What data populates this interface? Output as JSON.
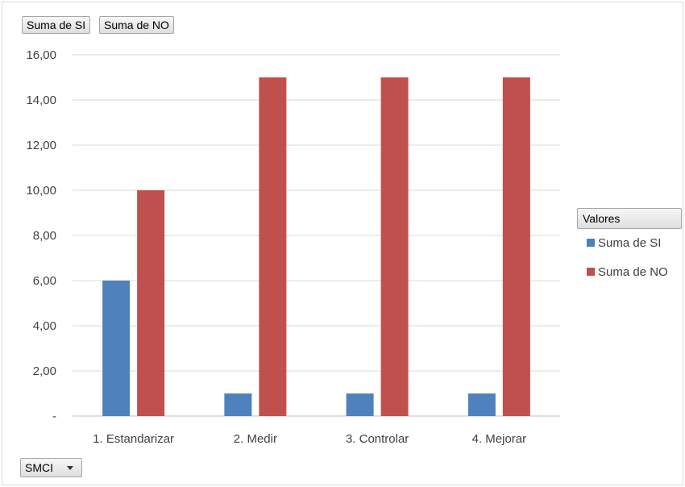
{
  "field_buttons": {
    "series_1": "Suma de SI",
    "series_2": "Suma de NO"
  },
  "legend": {
    "header": "Valores",
    "items": [
      {
        "label": "Suma de SI",
        "color": "#4f81bd"
      },
      {
        "label": "Suma de NO",
        "color": "#c0504d"
      }
    ]
  },
  "axis_dropdown": {
    "label": "SMCI",
    "icon": "chevron-down-icon"
  },
  "chart_data": {
    "type": "bar",
    "categories": [
      "1. Estandarizar",
      "2. Medir",
      "3. Controlar",
      "4. Mejorar"
    ],
    "series": [
      {
        "name": "Suma de SI",
        "values": [
          6,
          1,
          1,
          1
        ],
        "color": "#4f81bd"
      },
      {
        "name": "Suma de NO",
        "values": [
          10,
          15,
          15,
          15
        ],
        "color": "#c0504d"
      }
    ],
    "ylim": [
      0,
      16
    ],
    "yticks": [
      {
        "value": 0,
        "label": "-"
      },
      {
        "value": 2,
        "label": "2,00"
      },
      {
        "value": 4,
        "label": "4,00"
      },
      {
        "value": 6,
        "label": "6,00"
      },
      {
        "value": 8,
        "label": "8,00"
      },
      {
        "value": 10,
        "label": "10,00"
      },
      {
        "value": 12,
        "label": "12,00"
      },
      {
        "value": 14,
        "label": "14,00"
      },
      {
        "value": 16,
        "label": "16,00"
      }
    ],
    "grid": true,
    "legend_position": "right"
  }
}
